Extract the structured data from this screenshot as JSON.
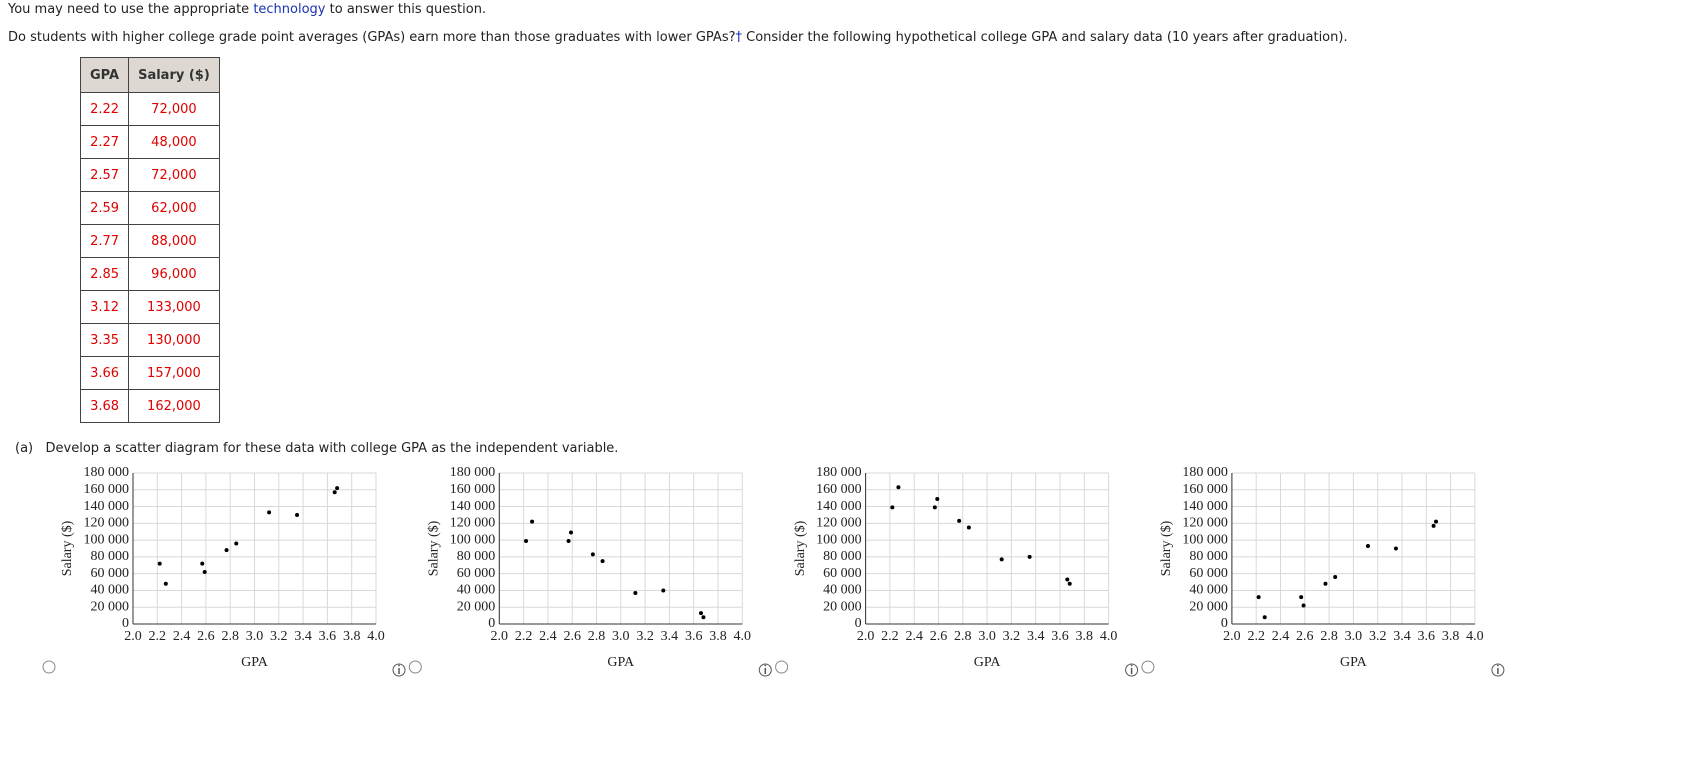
{
  "intro": {
    "before": "You may need to use the appropriate",
    "link": "technology",
    "after": "to answer this question."
  },
  "question": {
    "text": "Do students with higher college grade point averages (GPAs) earn more than those graduates with lower GPAs?",
    "mark": "†",
    "rest": "Consider the following hypothetical college GPA and salary data (10 years after graduation)."
  },
  "table": {
    "header": [
      "GPA",
      "Salary ($)"
    ],
    "rows": [
      [
        "2.22",
        "72,000"
      ],
      [
        "2.27",
        "48,000"
      ],
      [
        "2.57",
        "72,000"
      ],
      [
        "2.59",
        "62,000"
      ],
      [
        "2.77",
        "88,000"
      ],
      [
        "2.85",
        "96,000"
      ],
      [
        "3.12",
        "133,000"
      ],
      [
        "3.35",
        "130,000"
      ],
      [
        "3.66",
        "157,000"
      ],
      [
        "3.68",
        "162,000"
      ]
    ]
  },
  "part_a": {
    "label": "(a)",
    "text": "Develop a scatter diagram for these data with college GPA as the independent variable."
  },
  "chart_data": [
    {
      "type": "scatter",
      "x_label": "GPA",
      "y_label": "Salary ($)",
      "color": "#000000",
      "grid": true,
      "x": [
        2.22,
        2.27,
        2.57,
        2.59,
        2.77,
        2.85,
        3.12,
        3.35,
        3.66,
        3.68
      ],
      "values": [
        72000,
        48000,
        72000,
        62000,
        88000,
        96000,
        133000,
        130000,
        157000,
        162000
      ],
      "xlim": [
        2.0,
        4.0
      ],
      "ylim": [
        0,
        180000
      ],
      "xticks": [
        {
          "value": 2.0,
          "label": "2.0"
        },
        2.2,
        2.4,
        2.6,
        2.8,
        {
          "value": 3.0,
          "label": "3.0"
        },
        3.2,
        3.4,
        3.6,
        3.8,
        {
          "value": 4.0,
          "label": "4.0"
        }
      ],
      "yticks": [
        0,
        {
          "value": 20000,
          "label": "20 000"
        },
        {
          "value": 40000,
          "label": "40 000"
        },
        {
          "value": 60000,
          "label": "60 000"
        },
        {
          "value": 80000,
          "label": "80 000"
        },
        {
          "value": 100000,
          "label": "100 000"
        },
        {
          "value": 120000,
          "label": "120 000"
        },
        {
          "value": 140000,
          "label": "140 000"
        },
        {
          "value": 160000,
          "label": "160 000"
        },
        {
          "value": 180000,
          "label": "180 000"
        }
      ]
    },
    {
      "type": "scatter",
      "x_label": "GPA",
      "y_label": "Salary ($)",
      "color": "#000000",
      "grid": true,
      "x": [
        2.22,
        2.27,
        2.57,
        2.59,
        2.77,
        2.85,
        3.12,
        3.35,
        3.66,
        3.68
      ],
      "values": [
        99000,
        122000,
        99000,
        109000,
        83000,
        75000,
        37000,
        40000,
        13000,
        8000
      ],
      "xlim": [
        2.0,
        4.0
      ],
      "ylim": [
        0,
        180000
      ],
      "xticks": [
        {
          "value": 2.0,
          "label": "2.0"
        },
        2.2,
        2.4,
        2.6,
        2.8,
        {
          "value": 3.0,
          "label": "3.0"
        },
        3.2,
        3.4,
        3.6,
        3.8,
        {
          "value": 4.0,
          "label": "4.0"
        }
      ],
      "yticks": [
        0,
        {
          "value": 20000,
          "label": "20 000"
        },
        {
          "value": 40000,
          "label": "40 000"
        },
        {
          "value": 60000,
          "label": "60 000"
        },
        {
          "value": 80000,
          "label": "80 000"
        },
        {
          "value": 100000,
          "label": "100 000"
        },
        {
          "value": 120000,
          "label": "120 000"
        },
        {
          "value": 140000,
          "label": "140 000"
        },
        {
          "value": 160000,
          "label": "160 000"
        },
        {
          "value": 180000,
          "label": "180 000"
        }
      ]
    },
    {
      "type": "scatter",
      "x_label": "GPA",
      "y_label": "Salary ($)",
      "color": "#000000",
      "grid": true,
      "x": [
        2.22,
        2.27,
        2.57,
        2.59,
        2.77,
        2.85,
        3.12,
        3.35,
        3.66,
        3.68
      ],
      "values": [
        139000,
        163000,
        139000,
        149000,
        123000,
        115000,
        77000,
        80000,
        53000,
        48000
      ],
      "xlim": [
        2.0,
        4.0
      ],
      "ylim": [
        0,
        180000
      ],
      "xticks": [
        {
          "value": 2.0,
          "label": "2.0"
        },
        2.2,
        2.4,
        2.6,
        2.8,
        {
          "value": 3.0,
          "label": "3.0"
        },
        3.2,
        3.4,
        3.6,
        3.8,
        {
          "value": 4.0,
          "label": "4.0"
        }
      ],
      "yticks": [
        0,
        {
          "value": 20000,
          "label": "20 000"
        },
        {
          "value": 40000,
          "label": "40 000"
        },
        {
          "value": 60000,
          "label": "60 000"
        },
        {
          "value": 80000,
          "label": "80 000"
        },
        {
          "value": 100000,
          "label": "100 000"
        },
        {
          "value": 120000,
          "label": "120 000"
        },
        {
          "value": 140000,
          "label": "140 000"
        },
        {
          "value": 160000,
          "label": "160 000"
        },
        {
          "value": 180000,
          "label": "180 000"
        }
      ]
    },
    {
      "type": "scatter",
      "x_label": "GPA",
      "y_label": "Salary ($)",
      "color": "#000000",
      "grid": true,
      "x": [
        2.22,
        2.27,
        2.57,
        2.59,
        2.77,
        2.85,
        3.12,
        3.35,
        3.66,
        3.68
      ],
      "values": [
        32000,
        8000,
        32000,
        22000,
        48000,
        56000,
        93000,
        90000,
        117000,
        122000
      ],
      "xlim": [
        2.0,
        4.0
      ],
      "ylim": [
        0,
        180000
      ],
      "xticks": [
        {
          "value": 2.0,
          "label": "2.0"
        },
        2.2,
        2.4,
        2.6,
        2.8,
        {
          "value": 3.0,
          "label": "3.0"
        },
        3.2,
        3.4,
        3.6,
        3.8,
        {
          "value": 4.0,
          "label": "4.0"
        }
      ],
      "yticks": [
        0,
        {
          "value": 20000,
          "label": "20 000"
        },
        {
          "value": 40000,
          "label": "40 000"
        },
        {
          "value": 60000,
          "label": "60 000"
        },
        {
          "value": 80000,
          "label": "80 000"
        },
        {
          "value": 100000,
          "label": "100 000"
        },
        {
          "value": 120000,
          "label": "120 000"
        },
        {
          "value": 140000,
          "label": "140 000"
        },
        {
          "value": 160000,
          "label": "160 000"
        },
        {
          "value": 180000,
          "label": "180 000"
        }
      ]
    }
  ]
}
